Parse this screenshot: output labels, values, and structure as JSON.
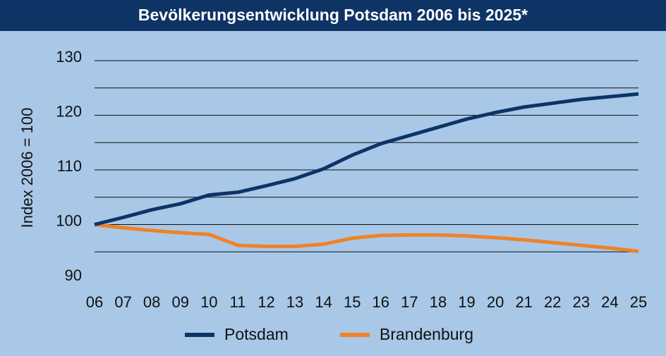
{
  "chart_data": {
    "type": "line",
    "title": "Bevölkerungsentwicklung Potsdam 2006 bis 2025*",
    "xlabel": "",
    "ylabel": "Index 2006 = 100",
    "categories": [
      "06",
      "07",
      "08",
      "09",
      "10",
      "11",
      "12",
      "13",
      "14",
      "15",
      "16",
      "17",
      "18",
      "19",
      "20",
      "21",
      "22",
      "23",
      "24",
      "25"
    ],
    "ylim": [
      90,
      130
    ],
    "yticks": [
      90,
      100,
      110,
      120,
      130
    ],
    "gridlines": [
      95,
      100,
      105,
      110,
      115,
      120,
      125,
      130
    ],
    "grid": true,
    "legend_position": "bottom",
    "series": [
      {
        "name": "Potsdam",
        "color": "#0e3365",
        "values": [
          100,
          101.3,
          102.7,
          103.8,
          105.4,
          105.9,
          107.1,
          108.4,
          110.2,
          112.7,
          114.8,
          116.3,
          117.8,
          119.3,
          120.5,
          121.5,
          122.2,
          122.9,
          123.4,
          123.9
        ]
      },
      {
        "name": "Brandenburg",
        "color": "#f08226",
        "values": [
          100,
          99.4,
          98.9,
          98.5,
          98.2,
          96.2,
          96.0,
          96.0,
          96.4,
          97.5,
          98.0,
          98.1,
          98.1,
          97.9,
          97.6,
          97.2,
          96.7,
          96.2,
          95.7,
          95.1
        ]
      }
    ]
  }
}
